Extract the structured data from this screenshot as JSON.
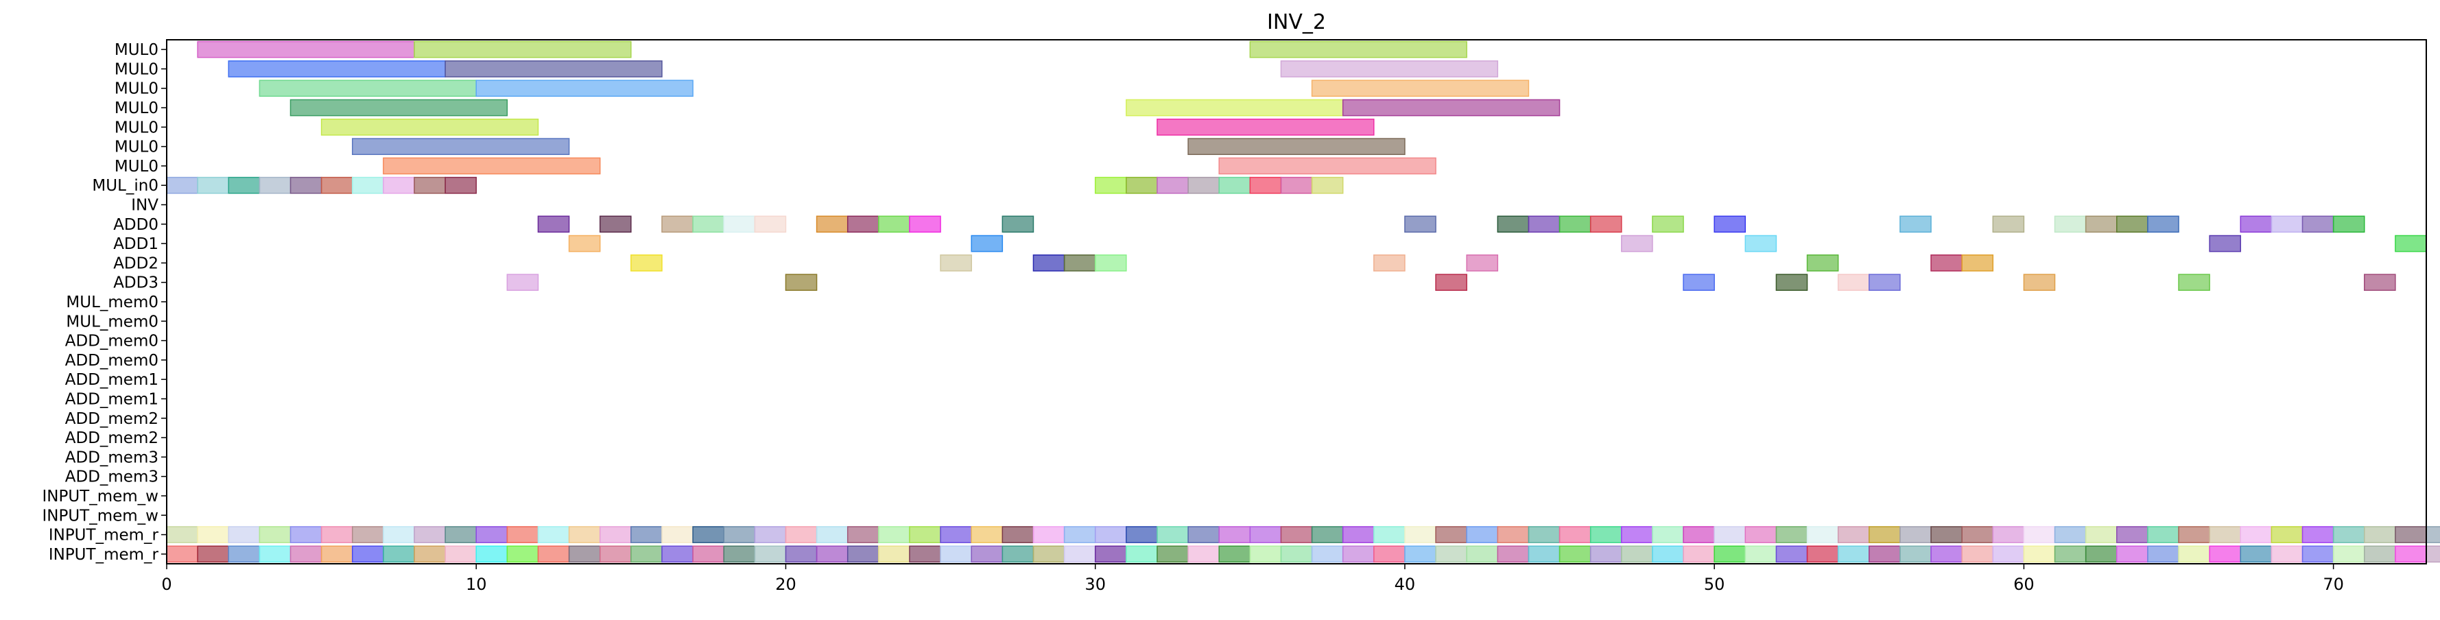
{
  "chart_data": {
    "type": "gantt",
    "title": "INV_2",
    "xlim": [
      0,
      73
    ],
    "x_ticks": [
      0,
      10,
      20,
      30,
      40,
      50,
      60,
      70
    ],
    "rows": [
      "MUL0",
      "MUL0",
      "MUL0",
      "MUL0",
      "MUL0",
      "MUL0",
      "MUL0",
      "MUL_in0",
      "INV",
      "ADD0",
      "ADD1",
      "ADD2",
      "ADD3",
      "MUL_mem0",
      "MUL_mem0",
      "ADD_mem0",
      "ADD_mem0",
      "ADD_mem1",
      "ADD_mem1",
      "ADD_mem2",
      "ADD_mem2",
      "ADD_mem3",
      "ADD_mem3",
      "INPUT_mem_w",
      "INPUT_mem_w",
      "INPUT_mem_r",
      "INPUT_mem_r"
    ],
    "tasks": [
      {
        "row": 0,
        "start": 1,
        "end": 8,
        "color": "#d45fc7"
      },
      {
        "row": 0,
        "start": 8,
        "end": 15,
        "color": "#a6d64f"
      },
      {
        "row": 0,
        "start": 35,
        "end": 42,
        "color": "#a6d64f"
      },
      {
        "row": 1,
        "start": 2,
        "end": 9,
        "color": "#3f6ff2"
      },
      {
        "row": 1,
        "start": 9,
        "end": 16,
        "color": "#56579c"
      },
      {
        "row": 1,
        "start": 36,
        "end": 43,
        "color": "#d2a8d8"
      },
      {
        "row": 2,
        "start": 3,
        "end": 10,
        "color": "#6fd98f"
      },
      {
        "row": 2,
        "start": 10,
        "end": 17,
        "color": "#5ba8f4"
      },
      {
        "row": 2,
        "start": 37,
        "end": 44,
        "color": "#f5b268"
      },
      {
        "row": 3,
        "start": 4,
        "end": 11,
        "color": "#3a9e62"
      },
      {
        "row": 3,
        "start": 31,
        "end": 38,
        "color": "#d4f05a"
      },
      {
        "row": 3,
        "start": 38,
        "end": 45,
        "color": "#a53f97"
      },
      {
        "row": 4,
        "start": 5,
        "end": 12,
        "color": "#c4e84c"
      },
      {
        "row": 4,
        "start": 32,
        "end": 39,
        "color": "#ee2ea5"
      },
      {
        "row": 5,
        "start": 6,
        "end": 13,
        "color": "#5a77c0"
      },
      {
        "row": 5,
        "start": 33,
        "end": 40,
        "color": "#7c6a58"
      },
      {
        "row": 6,
        "start": 7,
        "end": 14,
        "color": "#f7895a"
      },
      {
        "row": 6,
        "start": 34,
        "end": 41,
        "color": "#f2878a"
      },
      {
        "row": 7,
        "start": 0,
        "end": 1,
        "color": "#8fa8e0"
      },
      {
        "row": 7,
        "start": 1,
        "end": 2,
        "color": "#8fd0d6"
      },
      {
        "row": 7,
        "start": 2,
        "end": 3,
        "color": "#2aa58a"
      },
      {
        "row": 7,
        "start": 3,
        "end": 4,
        "color": "#a4b5c8"
      },
      {
        "row": 7,
        "start": 4,
        "end": 5,
        "color": "#7a5a8a"
      },
      {
        "row": 7,
        "start": 5,
        "end": 6,
        "color": "#c25a48"
      },
      {
        "row": 7,
        "start": 6,
        "end": 7,
        "color": "#9ff0e6"
      },
      {
        "row": 7,
        "start": 7,
        "end": 8,
        "color": "#e5a6e8"
      },
      {
        "row": 7,
        "start": 8,
        "end": 9,
        "color": "#9a5a5a"
      },
      {
        "row": 7,
        "start": 9,
        "end": 10,
        "color": "#8a2a4a"
      },
      {
        "row": 7,
        "start": 30,
        "end": 31,
        "color": "#9ef03a"
      },
      {
        "row": 7,
        "start": 31,
        "end": 32,
        "color": "#8ab82a"
      },
      {
        "row": 7,
        "start": 32,
        "end": 33,
        "color": "#c06ac0"
      },
      {
        "row": 7,
        "start": 33,
        "end": 34,
        "color": "#a89aa8"
      },
      {
        "row": 7,
        "start": 34,
        "end": 35,
        "color": "#6ad89a"
      },
      {
        "row": 7,
        "start": 35,
        "end": 36,
        "color": "#f03a5a"
      },
      {
        "row": 7,
        "start": 36,
        "end": 37,
        "color": "#d45aa0"
      },
      {
        "row": 7,
        "start": 37,
        "end": 38,
        "color": "#d0d86a"
      },
      {
        "row": 9,
        "start": 12,
        "end": 13,
        "color": "#6a2a9a"
      },
      {
        "row": 9,
        "start": 14,
        "end": 15,
        "color": "#5a2a4a"
      },
      {
        "row": 9,
        "start": 16,
        "end": 17,
        "color": "#b89a7a"
      },
      {
        "row": 9,
        "start": 17,
        "end": 18,
        "color": "#8ae0a0"
      },
      {
        "row": 9,
        "start": 18,
        "end": 19,
        "color": "#d8f0f0"
      },
      {
        "row": 9,
        "start": 19,
        "end": 20,
        "color": "#f5d8d0"
      },
      {
        "row": 9,
        "start": 21,
        "end": 22,
        "color": "#d88a2a"
      },
      {
        "row": 9,
        "start": 22,
        "end": 23,
        "color": "#8a2a5a"
      },
      {
        "row": 9,
        "start": 23,
        "end": 24,
        "color": "#6ad84a"
      },
      {
        "row": 9,
        "start": 24,
        "end": 25,
        "color": "#f02ae0"
      },
      {
        "row": 9,
        "start": 27,
        "end": 28,
        "color": "#2a7a6a"
      },
      {
        "row": 9,
        "start": 40,
        "end": 41,
        "color": "#5a6aaa"
      },
      {
        "row": 9,
        "start": 43,
        "end": 44,
        "color": "#2a5a3a"
      },
      {
        "row": 9,
        "start": 44,
        "end": 45,
        "color": "#6a3ab0"
      },
      {
        "row": 9,
        "start": 45,
        "end": 46,
        "color": "#3ab83a"
      },
      {
        "row": 9,
        "start": 46,
        "end": 47,
        "color": "#d83a4a"
      },
      {
        "row": 9,
        "start": 48,
        "end": 49,
        "color": "#8ad84a"
      },
      {
        "row": 9,
        "start": 50,
        "end": 51,
        "color": "#3a3af0"
      },
      {
        "row": 9,
        "start": 56,
        "end": 57,
        "color": "#5ab0d8"
      },
      {
        "row": 9,
        "start": 59,
        "end": 60,
        "color": "#b0b08a"
      },
      {
        "row": 9,
        "start": 61,
        "end": 62,
        "color": "#c0e8c8"
      },
      {
        "row": 9,
        "start": 62,
        "end": 63,
        "color": "#a0906a"
      },
      {
        "row": 9,
        "start": 63,
        "end": 64,
        "color": "#5a7a2a"
      },
      {
        "row": 9,
        "start": 64,
        "end": 65,
        "color": "#3a6ab8"
      },
      {
        "row": 9,
        "start": 67,
        "end": 68,
        "color": "#8a3ad8"
      },
      {
        "row": 9,
        "start": 68,
        "end": 69,
        "color": "#c0b0f0"
      },
      {
        "row": 9,
        "start": 69,
        "end": 70,
        "color": "#7a5ab0"
      },
      {
        "row": 9,
        "start": 70,
        "end": 71,
        "color": "#2ab83a"
      },
      {
        "row": 10,
        "start": 13,
        "end": 14,
        "color": "#f5b060"
      },
      {
        "row": 10,
        "start": 26,
        "end": 27,
        "color": "#2a8af0"
      },
      {
        "row": 10,
        "start": 47,
        "end": 48,
        "color": "#d0a0d8"
      },
      {
        "row": 10,
        "start": 51,
        "end": 52,
        "color": "#6ad8f5"
      },
      {
        "row": 10,
        "start": 66,
        "end": 67,
        "color": "#5a3ab0"
      },
      {
        "row": 10,
        "start": 72,
        "end": 73,
        "color": "#3ad84a"
      },
      {
        "row": 11,
        "start": 15,
        "end": 16,
        "color": "#f0e02a"
      },
      {
        "row": 11,
        "start": 25,
        "end": 26,
        "color": "#d0c8a0"
      },
      {
        "row": 11,
        "start": 28,
        "end": 29,
        "color": "#2a2ab0"
      },
      {
        "row": 11,
        "start": 29,
        "end": 30,
        "color": "#5a6a3a"
      },
      {
        "row": 11,
        "start": 30,
        "end": 31,
        "color": "#8af08a"
      },
      {
        "row": 11,
        "start": 39,
        "end": 40,
        "color": "#f0b090"
      },
      {
        "row": 11,
        "start": 42,
        "end": 43,
        "color": "#d870b0"
      },
      {
        "row": 11,
        "start": 53,
        "end": 54,
        "color": "#5ab83a"
      },
      {
        "row": 11,
        "start": 57,
        "end": 58,
        "color": "#b02a5a"
      },
      {
        "row": 11,
        "start": 58,
        "end": 59,
        "color": "#e0a02a"
      },
      {
        "row": 12,
        "start": 11,
        "end": 12,
        "color": "#d8a0e0"
      },
      {
        "row": 12,
        "start": 20,
        "end": 21,
        "color": "#8a7a2a"
      },
      {
        "row": 12,
        "start": 41,
        "end": 42,
        "color": "#b82a4a"
      },
      {
        "row": 12,
        "start": 49,
        "end": 50,
        "color": "#4a6af0"
      },
      {
        "row": 12,
        "start": 52,
        "end": 53,
        "color": "#3a5a2a"
      },
      {
        "row": 12,
        "start": 54,
        "end": 55,
        "color": "#f5c8c8"
      },
      {
        "row": 12,
        "start": 55,
        "end": 56,
        "color": "#6a6ad8"
      },
      {
        "row": 12,
        "start": 60,
        "end": 61,
        "color": "#e0a04a"
      },
      {
        "row": 12,
        "start": 65,
        "end": 66,
        "color": "#6ac84a"
      },
      {
        "row": 12,
        "start": 71,
        "end": 72,
        "color": "#a04a7a"
      }
    ],
    "repeat_rows": {
      "25": [
        "#c8d8a0",
        "#f5f0b0",
        "#c8d0f0",
        "#b0e890",
        "#8a8af0",
        "#f08ab0",
        "#b08a8a",
        "#c0e8f5",
        "#c0a0c8",
        "#5a8a8a",
        "#8a4ae0",
        "#f06a5a",
        "#a0f0f0",
        "#f0c88a",
        "#e8a0d8",
        "#5a7ab0",
        "#f5e8c8",
        "#2a5a8a",
        "#6a8aa8",
        "#b0a0e0",
        "#f5a0b0",
        "#b0e0f0",
        "#a05a7a",
        "#a8f0a0",
        "#a0e04a",
        "#6a4ae0",
        "#f0c05a",
        "#7a3a4a",
        "#f0a0f0",
        "#8ab0f0",
        "#a0a0f0",
        "#2a4ab0",
        "#6ad8b0",
        "#5a6ab0",
        "#c05ad8",
        "#b05ae0",
        "#b04a6a",
        "#3a8a6a",
        "#a040e0",
        "#8af0d8",
        "#f0f0c8",
        "#a05a5a",
        "#6a9af0",
        "#e07a6a",
        "#5ab0a0",
        "#f06a9a",
        "#3ad88a",
        "#a040f0",
        "#a0f0c0",
        "#d040c0",
        "#d0d0f0",
        "#e070c0",
        "#70b06a",
        "#d8f0f0",
        "#d09ab0",
        "#c0a02a",
        "#a0a0b0",
        "#6a4a4a",
        "#a05a5a",
        "#d890d8",
        "#f0d8f5",
        "#8ab0e0",
        "#d0e8a0",
        "#8a4ab0",
        "#5ad0a0",
        "#b06a5a",
        "#d0c0a0",
        "#f0b0f0",
        "#c0d83a",
        "#a040f0",
        "#6ac0b0",
        "#b0c0a0",
        "#7a5a6a",
        "#8aa0b0"
      ],
      "26": [
        "#f06a6a",
        "#a02a3a",
        "#5a8ad0",
        "#6af0f0",
        "#d06ab0",
        "#f0a05a",
        "#4a4af0",
        "#3ab0a0",
        "#d0a05a",
        "#f0b0c8",
        "#3af0f0",
        "#6af03a",
        "#f06a5a",
        "#7a6a7a",
        "#d06a8a",
        "#6ab06a",
        "#6a4ad8",
        "#d05a9a",
        "#4a7a6a",
        "#a0c0c0",
        "#6a4ab0",
        "#9a4ac0",
        "#5a4a9a",
        "#e8e08a",
        "#7a3a5a",
        "#b0c8f0",
        "#8a5ac0",
        "#3a9a8a",
        "#b0b06a",
        "#d0c8f0",
        "#6a2aa0",
        "#6af0c0",
        "#4a8a3a",
        "#f0b0d8",
        "#3a9a3a",
        "#b0f0a0",
        "#8ae0a0",
        "#a0c0f0",
        "#c07ad8",
        "#f05a8a",
        "#6ab0f0",
        "#b0d0b0",
        "#a0e0a0",
        "#c05aa0",
        "#5ac0d0",
        "#5ad03a",
        "#a08ad0",
        "#a0c0a0",
        "#5ad8f0",
        "#f0a0c0",
        "#3ad83a",
        "#b0f0b0",
        "#6a4ad8",
        "#d02a4a",
        "#6ad0e0",
        "#a03a8a",
        "#7ab0b0",
        "#a04ae0",
        "#f0a0a0",
        "#d0b0f0",
        "#f0f0a0",
        "#6ab06a",
        "#3a8a3a",
        "#d05ae0",
        "#6a8ae0",
        "#e0f0a0",
        "#f03ae0",
        "#3a8ab0",
        "#f0b0d8",
        "#6a6af0",
        "#c0f0b0",
        "#a0b0a0",
        "#f04ae0",
        "#c0a0c0"
      ]
    }
  }
}
